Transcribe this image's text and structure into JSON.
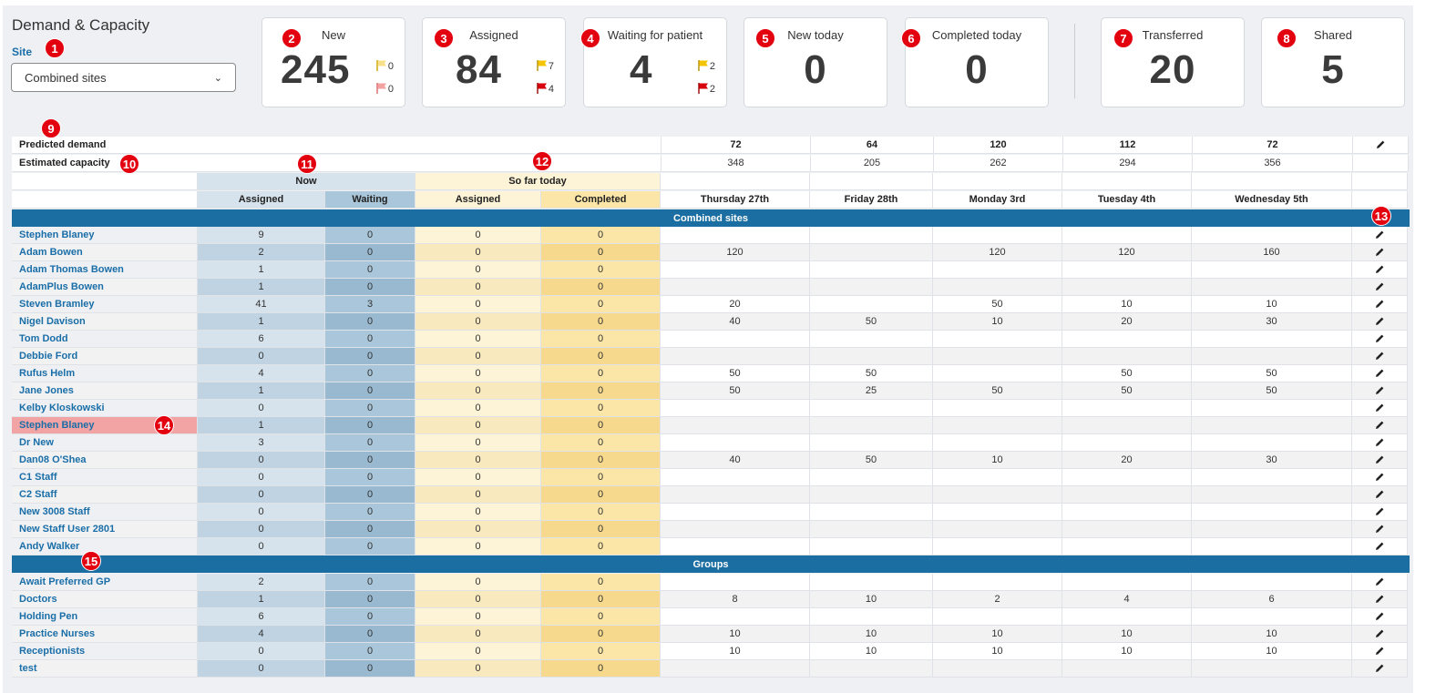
{
  "header": {
    "title": "Demand & Capacity",
    "site_label": "Site",
    "site_value": "Combined sites"
  },
  "cards": {
    "new": {
      "label": "New",
      "value": "245",
      "flag_yellow": "0",
      "flag_red": "0"
    },
    "assigned": {
      "label": "Assigned",
      "value": "84",
      "flag_yellow": "7",
      "flag_red": "4"
    },
    "waiting": {
      "label": "Waiting for patient",
      "value": "4",
      "flag_yellow": "2",
      "flag_red": "2"
    },
    "new_today": {
      "label": "New today",
      "value": "0"
    },
    "completed_today": {
      "label": "Completed today",
      "value": "0"
    },
    "transferred": {
      "label": "Transferred",
      "value": "20"
    },
    "shared": {
      "label": "Shared",
      "value": "5"
    }
  },
  "colors": {
    "section_bar": "#1b6ea1",
    "link": "#1a6ea8",
    "badge": "#e3000f",
    "flag_yellow": "#f5c400",
    "flag_red": "#d9000d",
    "highlight_row": "#f2a3a3"
  },
  "badges": [
    "1",
    "2",
    "3",
    "4",
    "5",
    "6",
    "7",
    "8",
    "9",
    "10",
    "11",
    "12",
    "13",
    "14",
    "15"
  ],
  "table": {
    "predicted_label": "Predicted demand",
    "predicted": [
      "72",
      "64",
      "120",
      "112",
      "72"
    ],
    "capacity_label": "Estimated capacity",
    "capacity": [
      "348",
      "205",
      "262",
      "294",
      "356"
    ],
    "group_now": "Now",
    "group_so_far": "So far today",
    "col_assigned": "Assigned",
    "col_waiting": "Waiting",
    "col_completed": "Completed",
    "days": [
      "Thursday 27th",
      "Friday 28th",
      "Monday 3rd",
      "Tuesday 4th",
      "Wednesday 5th"
    ],
    "section_combined": "Combined sites",
    "section_groups": "Groups",
    "staff": [
      {
        "name": "Stephen Blaney",
        "assigned": "9",
        "waiting": "0",
        "sf_assigned": "0",
        "sf_completed": "0",
        "days": [
          "",
          "",
          "",
          "",
          ""
        ]
      },
      {
        "name": "Adam Bowen",
        "assigned": "2",
        "waiting": "0",
        "sf_assigned": "0",
        "sf_completed": "0",
        "days": [
          "120",
          "",
          "120",
          "120",
          "160"
        ]
      },
      {
        "name": "Adam Thomas Bowen",
        "assigned": "1",
        "waiting": "0",
        "sf_assigned": "0",
        "sf_completed": "0",
        "days": [
          "",
          "",
          "",
          "",
          ""
        ]
      },
      {
        "name": "AdamPlus Bowen",
        "assigned": "1",
        "waiting": "0",
        "sf_assigned": "0",
        "sf_completed": "0",
        "days": [
          "",
          "",
          "",
          "",
          ""
        ]
      },
      {
        "name": "Steven Bramley",
        "assigned": "41",
        "waiting": "3",
        "sf_assigned": "0",
        "sf_completed": "0",
        "days": [
          "20",
          "",
          "50",
          "10",
          "10"
        ]
      },
      {
        "name": "Nigel Davison",
        "assigned": "1",
        "waiting": "0",
        "sf_assigned": "0",
        "sf_completed": "0",
        "days": [
          "40",
          "50",
          "10",
          "20",
          "30"
        ]
      },
      {
        "name": "Tom Dodd",
        "assigned": "6",
        "waiting": "0",
        "sf_assigned": "0",
        "sf_completed": "0",
        "days": [
          "",
          "",
          "",
          "",
          ""
        ]
      },
      {
        "name": "Debbie Ford",
        "assigned": "0",
        "waiting": "0",
        "sf_assigned": "0",
        "sf_completed": "0",
        "days": [
          "",
          "",
          "",
          "",
          ""
        ]
      },
      {
        "name": "Rufus Helm",
        "assigned": "4",
        "waiting": "0",
        "sf_assigned": "0",
        "sf_completed": "0",
        "days": [
          "50",
          "50",
          "",
          "50",
          "50"
        ]
      },
      {
        "name": "Jane Jones",
        "assigned": "1",
        "waiting": "0",
        "sf_assigned": "0",
        "sf_completed": "0",
        "days": [
          "50",
          "25",
          "50",
          "50",
          "50"
        ]
      },
      {
        "name": "Kelby Kloskowski",
        "assigned": "0",
        "waiting": "0",
        "sf_assigned": "0",
        "sf_completed": "0",
        "days": [
          "",
          "",
          "",
          "",
          ""
        ]
      },
      {
        "name": "Stephen Blaney",
        "assigned": "1",
        "waiting": "0",
        "sf_assigned": "0",
        "sf_completed": "0",
        "days": [
          "",
          "",
          "",
          "",
          ""
        ],
        "highlight": true
      },
      {
        "name": "Dr New",
        "assigned": "3",
        "waiting": "0",
        "sf_assigned": "0",
        "sf_completed": "0",
        "days": [
          "",
          "",
          "",
          "",
          ""
        ]
      },
      {
        "name": "Dan08 O'Shea",
        "assigned": "0",
        "waiting": "0",
        "sf_assigned": "0",
        "sf_completed": "0",
        "days": [
          "40",
          "50",
          "10",
          "20",
          "30"
        ]
      },
      {
        "name": "C1 Staff",
        "assigned": "0",
        "waiting": "0",
        "sf_assigned": "0",
        "sf_completed": "0",
        "days": [
          "",
          "",
          "",
          "",
          ""
        ]
      },
      {
        "name": "C2 Staff",
        "assigned": "0",
        "waiting": "0",
        "sf_assigned": "0",
        "sf_completed": "0",
        "days": [
          "",
          "",
          "",
          "",
          ""
        ]
      },
      {
        "name": "New 3008 Staff",
        "assigned": "0",
        "waiting": "0",
        "sf_assigned": "0",
        "sf_completed": "0",
        "days": [
          "",
          "",
          "",
          "",
          ""
        ]
      },
      {
        "name": "New Staff User 2801",
        "assigned": "0",
        "waiting": "0",
        "sf_assigned": "0",
        "sf_completed": "0",
        "days": [
          "",
          "",
          "",
          "",
          ""
        ]
      },
      {
        "name": "Andy Walker",
        "assigned": "0",
        "waiting": "0",
        "sf_assigned": "0",
        "sf_completed": "0",
        "days": [
          "",
          "",
          "",
          "",
          ""
        ]
      }
    ],
    "groups": [
      {
        "name": "Await Preferred GP",
        "assigned": "2",
        "waiting": "0",
        "sf_assigned": "0",
        "sf_completed": "0",
        "days": [
          "",
          "",
          "",
          "",
          ""
        ]
      },
      {
        "name": "Doctors",
        "assigned": "1",
        "waiting": "0",
        "sf_assigned": "0",
        "sf_completed": "0",
        "days": [
          "8",
          "10",
          "2",
          "4",
          "6"
        ]
      },
      {
        "name": "Holding Pen",
        "assigned": "6",
        "waiting": "0",
        "sf_assigned": "0",
        "sf_completed": "0",
        "days": [
          "",
          "",
          "",
          "",
          ""
        ]
      },
      {
        "name": "Practice Nurses",
        "assigned": "4",
        "waiting": "0",
        "sf_assigned": "0",
        "sf_completed": "0",
        "days": [
          "10",
          "10",
          "10",
          "10",
          "10"
        ]
      },
      {
        "name": "Receptionists",
        "assigned": "0",
        "waiting": "0",
        "sf_assigned": "0",
        "sf_completed": "0",
        "days": [
          "10",
          "10",
          "10",
          "10",
          "10"
        ]
      },
      {
        "name": "test",
        "assigned": "0",
        "waiting": "0",
        "sf_assigned": "0",
        "sf_completed": "0",
        "days": [
          "",
          "",
          "",
          "",
          ""
        ]
      }
    ]
  }
}
